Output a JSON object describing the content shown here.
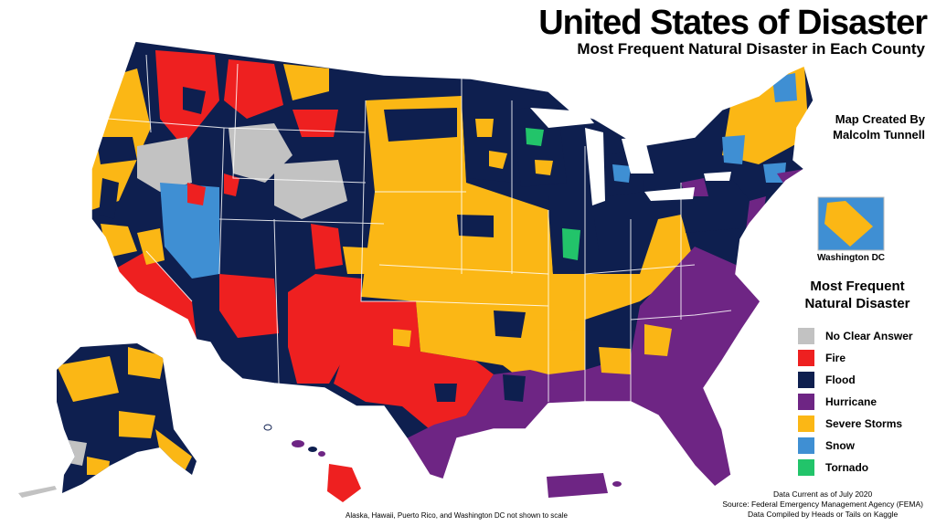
{
  "header": {
    "title": "United States of Disaster",
    "subtitle": "Most Frequent Natural Disaster in Each County"
  },
  "credit": {
    "line1": "Map Created By",
    "line2": "Malcolm Tunnell"
  },
  "inset": {
    "label": "Washington DC"
  },
  "legend": {
    "title_line1": "Most Frequent",
    "title_line2": "Natural Disaster",
    "items": [
      {
        "label": "No Clear Answer",
        "color": "#c2c2c2"
      },
      {
        "label": "Fire",
        "color": "#ee2020"
      },
      {
        "label": "Flood",
        "color": "#0e1f4f"
      },
      {
        "label": "Hurricane",
        "color": "#6e2584"
      },
      {
        "label": "Severe Storms",
        "color": "#fbb715"
      },
      {
        "label": "Snow",
        "color": "#3f8fd3"
      },
      {
        "label": "Tornado",
        "color": "#22c46a"
      }
    ]
  },
  "source": {
    "line1": "Data Current as of July 2020",
    "line2": "Source: Federal Emergency Management Agency (FEMA)",
    "line3": "Data Compiled by Heads or Tails on Kaggle"
  },
  "footnote": "Alaska, Hawaii, Puerto Rico, and Washington DC not shown to scale"
}
